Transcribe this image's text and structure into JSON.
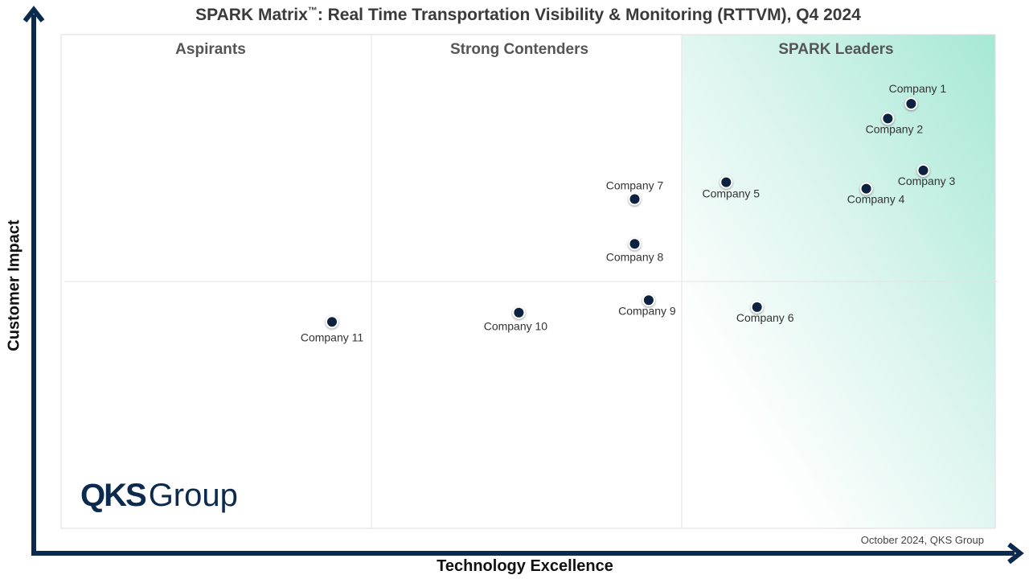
{
  "chart_data": {
    "type": "scatter",
    "title": "SPARK Matrix",
    "title_tm": "™",
    "title_rest": ": Real Time Transportation Visibility & Monitoring (RTTVM), Q4 2024",
    "xlabel": "Technology Excellence",
    "ylabel": "Customer Impact",
    "quadrants": [
      "Aspirants",
      "Strong Contenders",
      "SPARK Leaders"
    ],
    "points": [
      {
        "label": "Company 1",
        "x": 0.91,
        "y": 0.86
      },
      {
        "label": "Company 2",
        "x": 0.885,
        "y": 0.83
      },
      {
        "label": "Company 3",
        "x": 0.923,
        "y": 0.725
      },
      {
        "label": "Company 4",
        "x": 0.862,
        "y": 0.688
      },
      {
        "label": "Company 5",
        "x": 0.712,
        "y": 0.701
      },
      {
        "label": "Company 6",
        "x": 0.745,
        "y": 0.448
      },
      {
        "label": "Company 7",
        "x": 0.614,
        "y": 0.667
      },
      {
        "label": "Company 8",
        "x": 0.614,
        "y": 0.576
      },
      {
        "label": "Company 9",
        "x": 0.629,
        "y": 0.462
      },
      {
        "label": "Company 10",
        "x": 0.49,
        "y": 0.437
      },
      {
        "label": "Company 11",
        "x": 0.29,
        "y": 0.418
      }
    ],
    "grid": true,
    "legend": "none"
  },
  "footnote": "October 2024, QKS Group",
  "logo": {
    "bold": "QKS",
    "light": "Group"
  },
  "colors": {
    "point": "#0c2340",
    "axis": "#0c2a4d",
    "leaders_gradient": "#a6e8d6"
  }
}
